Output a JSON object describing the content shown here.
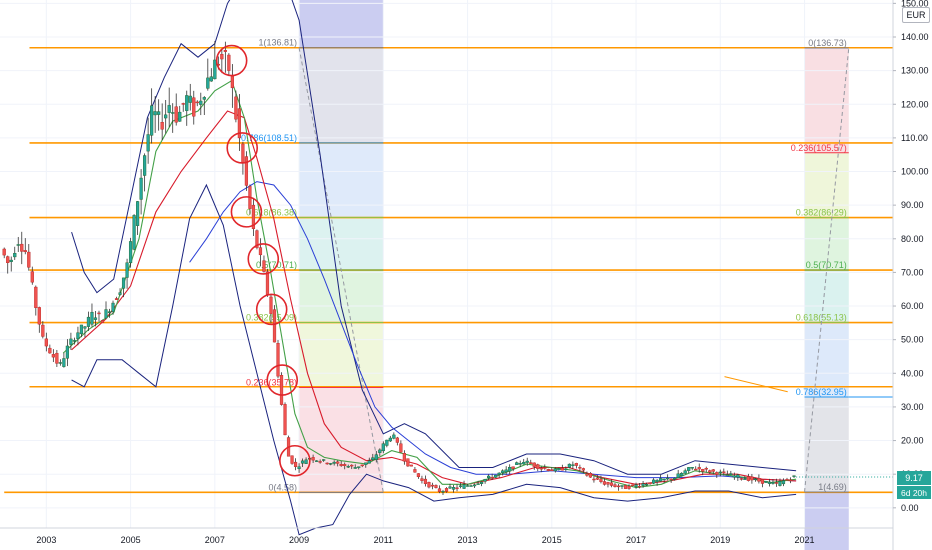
{
  "chart_data": {
    "type": "candlestick",
    "title": "",
    "currency": "EUR",
    "last_price": "9.17",
    "countdown": "6d 20h",
    "y_ticks": [
      "150.00",
      "140.00",
      "130.00",
      "120.00",
      "110.00",
      "100.00",
      "90.00",
      "80.00",
      "70.00",
      "60.00",
      "50.00",
      "40.00",
      "30.00",
      "20.00",
      "10.00",
      "0.00"
    ],
    "x_ticks": [
      "2003",
      "2005",
      "2007",
      "2009",
      "2011",
      "2013",
      "2015",
      "2017",
      "2019",
      "2021"
    ],
    "ylim": [
      -6,
      151
    ],
    "xlim": [
      2001.9,
      2023.1
    ],
    "horizontal_levels": [
      136.8,
      108.5,
      86.3,
      70.7,
      55.1,
      36.0,
      4.6
    ],
    "fib_left": {
      "x_range": [
        2009.0,
        2011.0
      ],
      "labels": [
        {
          "text": "1(136.81)",
          "value": 136.81,
          "color": "#787b86"
        },
        {
          "text": "0.786(108.51)",
          "value": 108.51,
          "color": "#2196f3"
        },
        {
          "text": "0.618(86.38)",
          "value": 86.38,
          "color": "#8bc34a"
        },
        {
          "text": "0.5(70.71)",
          "value": 70.71,
          "color": "#4caf50"
        },
        {
          "text": "0.382(55.09)",
          "value": 55.09,
          "color": "#8bc34a"
        },
        {
          "text": "0.236(35.78)",
          "value": 35.78,
          "color": "#f23645"
        },
        {
          "text": "0(4.58)",
          "value": 4.58,
          "color": "#787b86"
        }
      ]
    },
    "fib_right": {
      "x_range": [
        2021.0,
        2022.05
      ],
      "labels": [
        {
          "text": "0(136.73)",
          "value": 136.73,
          "color": "#787b86"
        },
        {
          "text": "0.236(105.57)",
          "value": 105.57,
          "color": "#f23645"
        },
        {
          "text": "0.382(86.29)",
          "value": 86.29,
          "color": "#8bc34a"
        },
        {
          "text": "0.5(70.71)",
          "value": 70.71,
          "color": "#4caf50"
        },
        {
          "text": "0.618(55.13)",
          "value": 55.13,
          "color": "#8bc34a"
        },
        {
          "text": "0.786(32.95)",
          "value": 32.95,
          "color": "#2196f3"
        },
        {
          "text": "1(4.69)",
          "value": 4.69,
          "color": "#787b86"
        }
      ]
    },
    "circled_points": [
      {
        "x": 2007.4,
        "y": 133
      },
      {
        "x": 2007.65,
        "y": 107
      },
      {
        "x": 2007.75,
        "y": 88
      },
      {
        "x": 2008.15,
        "y": 74
      },
      {
        "x": 2008.35,
        "y": 59
      },
      {
        "x": 2008.6,
        "y": 38
      },
      {
        "x": 2008.9,
        "y": 14
      }
    ],
    "price_series": [
      [
        2002.0,
        77
      ],
      [
        2002.2,
        72
      ],
      [
        2002.4,
        80
      ],
      [
        2002.6,
        76
      ],
      [
        2002.8,
        62
      ],
      [
        2003.0,
        50
      ],
      [
        2003.2,
        46
      ],
      [
        2003.4,
        42
      ],
      [
        2003.6,
        48
      ],
      [
        2003.8,
        52
      ],
      [
        2004.0,
        54
      ],
      [
        2004.2,
        58
      ],
      [
        2004.4,
        56
      ],
      [
        2004.6,
        60
      ],
      [
        2004.8,
        64
      ],
      [
        2005.0,
        72
      ],
      [
        2005.2,
        88
      ],
      [
        2005.4,
        104
      ],
      [
        2005.6,
        118
      ],
      [
        2005.8,
        114
      ],
      [
        2006.0,
        120
      ],
      [
        2006.2,
        116
      ],
      [
        2006.4,
        122
      ],
      [
        2006.6,
        118
      ],
      [
        2006.8,
        124
      ],
      [
        2007.0,
        130
      ],
      [
        2007.2,
        134
      ],
      [
        2007.4,
        132
      ],
      [
        2007.6,
        115
      ],
      [
        2007.8,
        98
      ],
      [
        2008.0,
        82
      ],
      [
        2008.2,
        72
      ],
      [
        2008.4,
        60
      ],
      [
        2008.6,
        38
      ],
      [
        2008.8,
        16
      ],
      [
        2009.0,
        12
      ],
      [
        2009.3,
        15
      ],
      [
        2009.6,
        14
      ],
      [
        2010.0,
        13
      ],
      [
        2010.4,
        12
      ],
      [
        2010.8,
        14
      ],
      [
        2011.1,
        19
      ],
      [
        2011.3,
        22
      ],
      [
        2011.6,
        14
      ],
      [
        2012.0,
        8
      ],
      [
        2012.4,
        5
      ],
      [
        2012.8,
        6
      ],
      [
        2013.2,
        7
      ],
      [
        2013.6,
        9
      ],
      [
        2014.0,
        11
      ],
      [
        2014.4,
        14
      ],
      [
        2014.8,
        12
      ],
      [
        2015.2,
        11
      ],
      [
        2015.6,
        13
      ],
      [
        2016.0,
        9
      ],
      [
        2016.4,
        7
      ],
      [
        2016.8,
        6
      ],
      [
        2017.2,
        7
      ],
      [
        2017.6,
        8
      ],
      [
        2018.0,
        9
      ],
      [
        2018.4,
        12
      ],
      [
        2018.8,
        11
      ],
      [
        2019.2,
        10
      ],
      [
        2019.6,
        9
      ],
      [
        2020.0,
        8
      ],
      [
        2020.4,
        7
      ],
      [
        2020.8,
        9.2
      ]
    ],
    "ema_fast": [
      [
        2003.4,
        46
      ],
      [
        2004.0,
        53
      ],
      [
        2004.6,
        58
      ],
      [
        2005.2,
        80
      ],
      [
        2005.6,
        106
      ],
      [
        2006.0,
        115
      ],
      [
        2006.6,
        118
      ],
      [
        2007.0,
        124
      ],
      [
        2007.4,
        127
      ],
      [
        2007.7,
        116
      ],
      [
        2008.0,
        92
      ],
      [
        2008.3,
        72
      ],
      [
        2008.6,
        50
      ],
      [
        2008.9,
        28
      ],
      [
        2009.2,
        18
      ],
      [
        2009.6,
        15
      ],
      [
        2010.0,
        14
      ],
      [
        2010.6,
        13
      ],
      [
        2011.2,
        17
      ],
      [
        2011.8,
        15
      ],
      [
        2012.4,
        7
      ],
      [
        2013.0,
        7
      ],
      [
        2013.6,
        9
      ],
      [
        2014.4,
        13
      ],
      [
        2015.0,
        12
      ],
      [
        2015.6,
        11
      ],
      [
        2016.4,
        8
      ],
      [
        2017.0,
        6
      ],
      [
        2017.6,
        7
      ],
      [
        2018.4,
        11
      ],
      [
        2019.0,
        10
      ],
      [
        2019.6,
        9
      ],
      [
        2020.2,
        7.5
      ],
      [
        2020.8,
        8.5
      ]
    ],
    "ema_slow": [
      [
        2003.6,
        47
      ],
      [
        2004.4,
        56
      ],
      [
        2005.0,
        66
      ],
      [
        2005.6,
        88
      ],
      [
        2006.2,
        100
      ],
      [
        2006.8,
        110
      ],
      [
        2007.3,
        118
      ],
      [
        2007.7,
        116
      ],
      [
        2008.0,
        104
      ],
      [
        2008.4,
        86
      ],
      [
        2008.8,
        62
      ],
      [
        2009.2,
        40
      ],
      [
        2009.6,
        25
      ],
      [
        2010.0,
        18
      ],
      [
        2010.6,
        14
      ],
      [
        2011.2,
        15
      ],
      [
        2011.8,
        13
      ],
      [
        2012.4,
        9
      ],
      [
        2013.0,
        7
      ],
      [
        2013.8,
        9
      ],
      [
        2014.6,
        12
      ],
      [
        2015.4,
        12
      ],
      [
        2016.2,
        9
      ],
      [
        2017.0,
        7
      ],
      [
        2017.8,
        8
      ],
      [
        2018.6,
        10
      ],
      [
        2019.4,
        10
      ],
      [
        2020.0,
        8.5
      ],
      [
        2020.8,
        8
      ]
    ],
    "sma_long": [
      [
        2006.4,
        73
      ],
      [
        2006.8,
        80
      ],
      [
        2007.2,
        88
      ],
      [
        2007.6,
        94
      ],
      [
        2008.0,
        97
      ],
      [
        2008.4,
        96
      ],
      [
        2008.8,
        90
      ],
      [
        2009.2,
        80
      ],
      [
        2009.6,
        68
      ],
      [
        2010.0,
        55
      ],
      [
        2010.4,
        42
      ],
      [
        2010.8,
        30
      ],
      [
        2011.2,
        24
      ],
      [
        2011.6,
        20
      ],
      [
        2012.0,
        16
      ],
      [
        2012.6,
        12
      ],
      [
        2013.2,
        10
      ],
      [
        2014.0,
        10
      ],
      [
        2015.0,
        11
      ],
      [
        2016.0,
        10
      ],
      [
        2017.0,
        9
      ],
      [
        2018.0,
        9
      ],
      [
        2019.0,
        9.5
      ],
      [
        2020.0,
        8.5
      ],
      [
        2020.8,
        8
      ]
    ],
    "bb_upper": [
      [
        2003.6,
        82
      ],
      [
        2003.9,
        70
      ],
      [
        2004.2,
        64
      ],
      [
        2004.6,
        68
      ],
      [
        2005.0,
        92
      ],
      [
        2005.4,
        116
      ],
      [
        2005.8,
        128
      ],
      [
        2006.2,
        138
      ],
      [
        2006.6,
        134
      ],
      [
        2007.0,
        138
      ],
      [
        2007.3,
        150
      ],
      [
        2007.6,
        156
      ],
      [
        2008.0,
        160
      ],
      [
        2008.5,
        163
      ],
      [
        2009.0,
        145
      ],
      [
        2009.5,
        105
      ],
      [
        2010.0,
        60
      ],
      [
        2010.5,
        35
      ],
      [
        2011.0,
        22
      ],
      [
        2011.5,
        25
      ],
      [
        2012.0,
        22
      ],
      [
        2012.8,
        12
      ],
      [
        2013.6,
        12
      ],
      [
        2014.4,
        16
      ],
      [
        2015.2,
        16
      ],
      [
        2016.0,
        14
      ],
      [
        2016.8,
        10
      ],
      [
        2017.6,
        10
      ],
      [
        2018.4,
        14
      ],
      [
        2019.2,
        13
      ],
      [
        2020.0,
        12
      ],
      [
        2020.8,
        11
      ]
    ],
    "bb_lower": [
      [
        2003.6,
        38
      ],
      [
        2003.9,
        36
      ],
      [
        2004.2,
        44
      ],
      [
        2004.8,
        44
      ],
      [
        2005.2,
        40
      ],
      [
        2005.6,
        36
      ],
      [
        2006.0,
        60
      ],
      [
        2006.4,
        86
      ],
      [
        2006.8,
        96
      ],
      [
        2007.2,
        84
      ],
      [
        2007.6,
        60
      ],
      [
        2008.0,
        40
      ],
      [
        2008.4,
        20
      ],
      [
        2008.8,
        2
      ],
      [
        2009.0,
        -8
      ],
      [
        2009.4,
        -6
      ],
      [
        2009.8,
        -5
      ],
      [
        2010.2,
        4
      ],
      [
        2010.6,
        10
      ],
      [
        2011.0,
        8
      ],
      [
        2011.6,
        6
      ],
      [
        2012.2,
        2
      ],
      [
        2012.8,
        3
      ],
      [
        2013.6,
        4
      ],
      [
        2014.4,
        7
      ],
      [
        2015.2,
        6
      ],
      [
        2016.0,
        3
      ],
      [
        2016.8,
        2
      ],
      [
        2017.6,
        3
      ],
      [
        2018.4,
        5
      ],
      [
        2019.2,
        5
      ],
      [
        2020.0,
        3
      ],
      [
        2020.8,
        4
      ]
    ]
  }
}
